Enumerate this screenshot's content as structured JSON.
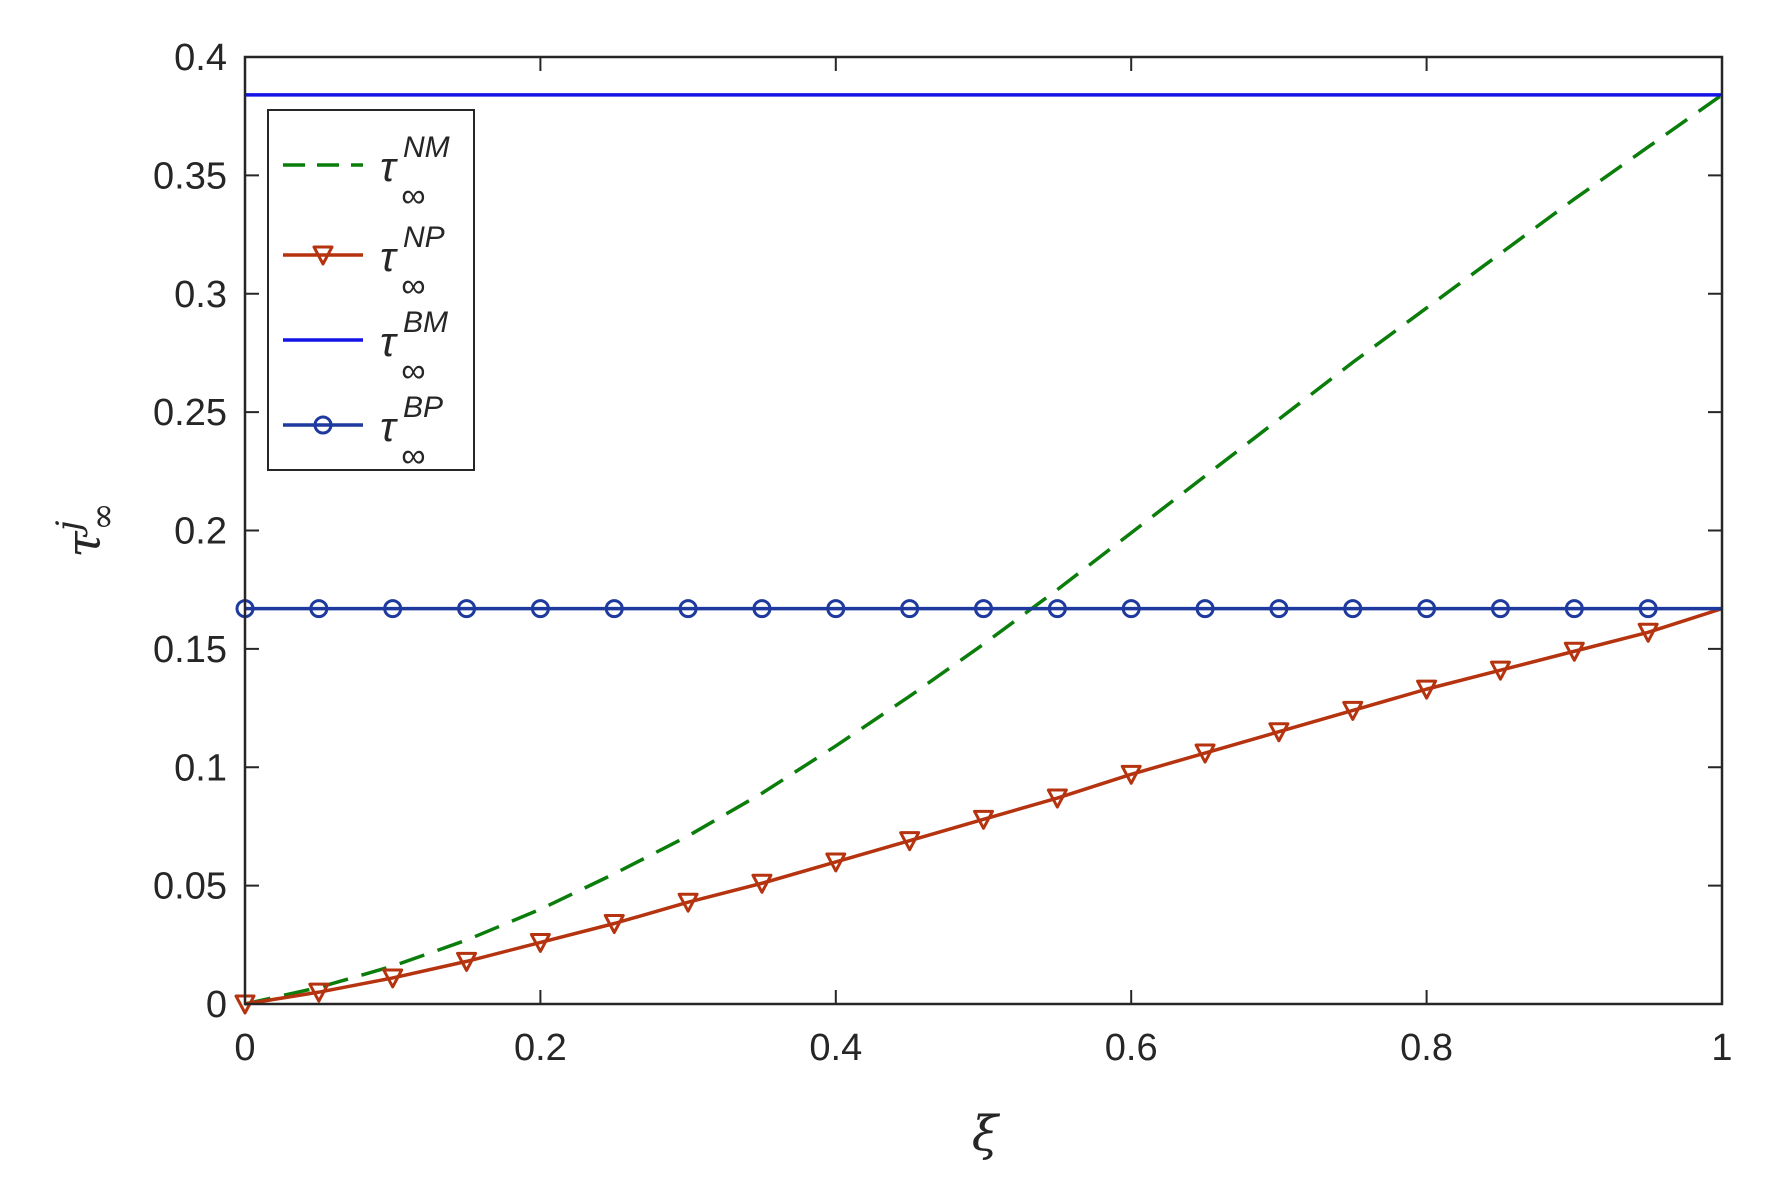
{
  "chart_data": {
    "type": "line",
    "title": "",
    "xlabel": "ξ",
    "ylabel": {
      "base": "τ",
      "sup": "j",
      "sub": "∞"
    },
    "xlim": [
      0,
      1
    ],
    "ylim": [
      0,
      0.4
    ],
    "xticks": [
      {
        "value": 0,
        "label": "0"
      },
      {
        "value": 0.2,
        "label": "0.2"
      },
      {
        "value": 0.4,
        "label": "0.4"
      },
      {
        "value": 0.6,
        "label": "0.6"
      },
      {
        "value": 0.8,
        "label": "0.8"
      },
      {
        "value": 1,
        "label": "1"
      }
    ],
    "yticks": [
      {
        "value": 0,
        "label": "0"
      },
      {
        "value": 0.05,
        "label": "0.05"
      },
      {
        "value": 0.1,
        "label": "0.1"
      },
      {
        "value": 0.15,
        "label": "0.15"
      },
      {
        "value": 0.2,
        "label": "0.2"
      },
      {
        "value": 0.25,
        "label": "0.25"
      },
      {
        "value": 0.3,
        "label": "0.3"
      },
      {
        "value": 0.35,
        "label": "0.35"
      },
      {
        "value": 0.4,
        "label": "0.4"
      }
    ],
    "grid": false,
    "legend_position": "top-left",
    "series": [
      {
        "name": "τ∞^NM",
        "legend_base": "τ",
        "legend_sup": "NM",
        "legend_sub": "∞",
        "color": "#0b7d0b",
        "style": "dashed",
        "marker": "none",
        "x": [
          0,
          0.05,
          0.1,
          0.15,
          0.2,
          0.25,
          0.3,
          0.35,
          0.4,
          0.45,
          0.5,
          0.55,
          0.6,
          0.65,
          0.7,
          0.75,
          0.8,
          0.85,
          0.9,
          0.95,
          1.0
        ],
        "y": [
          0,
          0.007,
          0.016,
          0.027,
          0.04,
          0.055,
          0.071,
          0.089,
          0.109,
          0.13,
          0.152,
          0.175,
          0.199,
          0.223,
          0.247,
          0.271,
          0.294,
          0.317,
          0.34,
          0.362,
          0.384
        ]
      },
      {
        "name": "τ∞^NP",
        "legend_base": "τ",
        "legend_sup": "NP",
        "legend_sub": "∞",
        "color": "#b5330e",
        "style": "solid",
        "marker": "triangle-down",
        "x": [
          0,
          0.05,
          0.1,
          0.15,
          0.2,
          0.25,
          0.3,
          0.35,
          0.4,
          0.45,
          0.5,
          0.55,
          0.6,
          0.65,
          0.7,
          0.75,
          0.8,
          0.85,
          0.9,
          0.95
        ],
        "y": [
          0,
          0.005,
          0.011,
          0.018,
          0.026,
          0.034,
          0.043,
          0.051,
          0.06,
          0.069,
          0.078,
          0.087,
          0.097,
          0.106,
          0.115,
          0.124,
          0.133,
          0.141,
          0.149,
          0.157
        ],
        "line_end": [
          1.0,
          0.167
        ]
      },
      {
        "name": "τ∞^BM",
        "legend_base": "τ",
        "legend_sup": "BM",
        "legend_sub": "∞",
        "color": "#1414e6",
        "style": "solid",
        "marker": "none",
        "x": [
          0,
          1.0
        ],
        "y": [
          0.384,
          0.384
        ]
      },
      {
        "name": "τ∞^BP",
        "legend_base": "τ",
        "legend_sup": "BP",
        "legend_sub": "∞",
        "color": "#1f3a9e",
        "style": "solid",
        "marker": "circle",
        "x": [
          0,
          0.05,
          0.1,
          0.15,
          0.2,
          0.25,
          0.3,
          0.35,
          0.4,
          0.45,
          0.5,
          0.55,
          0.6,
          0.65,
          0.7,
          0.75,
          0.8,
          0.85,
          0.9,
          0.95
        ],
        "y": [
          0.167,
          0.167,
          0.167,
          0.167,
          0.167,
          0.167,
          0.167,
          0.167,
          0.167,
          0.167,
          0.167,
          0.167,
          0.167,
          0.167,
          0.167,
          0.167,
          0.167,
          0.167,
          0.167,
          0.167
        ],
        "line_end": [
          1.0,
          0.167
        ]
      }
    ]
  }
}
